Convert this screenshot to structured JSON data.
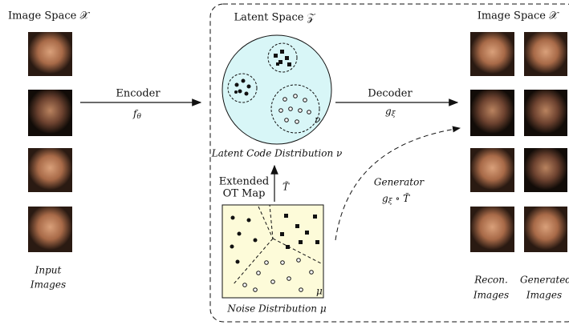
{
  "left": {
    "title": "Image Space 𝒳",
    "caption": [
      "Input",
      "Images"
    ]
  },
  "encoder": {
    "label": "Encoder",
    "symbol": "f",
    "subscript": "θ"
  },
  "latent": {
    "title": "Latent Space 𝒵",
    "region_label": "ν",
    "caption": "Latent Code Distribution ν"
  },
  "ot_map": {
    "label": [
      "Extended",
      "OT Map"
    ],
    "symbol": "T̃"
  },
  "noise": {
    "region_label": "μ",
    "caption": "Noise Distribution μ"
  },
  "decoder": {
    "label": "Decoder",
    "symbol": "g",
    "subscript": "ξ"
  },
  "generator": {
    "label": "Generator",
    "symbol": "g",
    "subscript": "ξ",
    "composition": " ∘ T̃"
  },
  "right": {
    "title": "Image Space 𝒳",
    "captions": [
      [
        "Recon.",
        "Images"
      ],
      [
        "Generated",
        "Images"
      ]
    ]
  }
}
